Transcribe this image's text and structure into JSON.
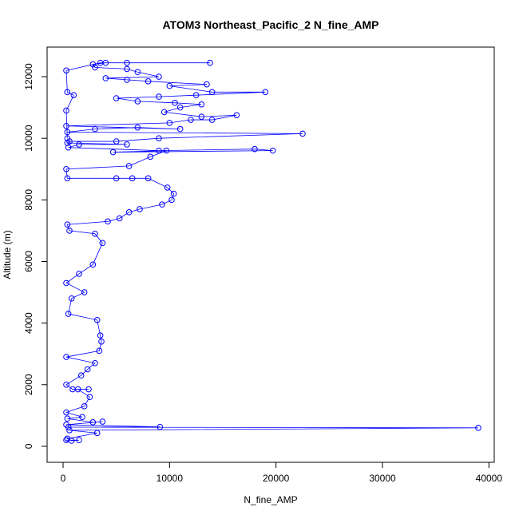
{
  "chart_data": {
    "type": "line",
    "title": "ATOM3 Northeast_Pacific_2 N_fine_AMP",
    "xlabel": "N_fine_AMP",
    "ylabel": "Altitude (m)",
    "color": "#0000ff",
    "markers": true,
    "x": [
      300,
      1500,
      800,
      400,
      3200,
      600,
      39000,
      500,
      9100,
      300,
      3700,
      2800,
      400,
      1800,
      300,
      2000,
      2500,
      1400,
      2400,
      900,
      300,
      1700,
      2300,
      3000,
      300,
      3400,
      3600,
      3500,
      3200,
      500,
      800,
      2000,
      300,
      1500,
      2800,
      3700,
      3000,
      600,
      400,
      4200,
      5300,
      6200,
      7200,
      9300,
      10200,
      10400,
      9800,
      8000,
      6500,
      5000,
      400,
      300,
      6200,
      8200,
      9700,
      4700,
      19700,
      18000,
      9000,
      500,
      1500,
      6000,
      400,
      600,
      5000,
      9000,
      22500,
      400,
      3000,
      7000,
      11000,
      300,
      10000,
      12000,
      14000,
      16300,
      13000,
      9500,
      11000,
      13000,
      10500,
      7000,
      5000,
      9000,
      12500,
      19000,
      14000,
      10000,
      13500,
      8000,
      6000,
      4000,
      9000,
      7000,
      6000,
      3000,
      2800,
      4000,
      6000,
      13800,
      3500,
      300,
      400,
      1000,
      300,
      400
    ],
    "values": [
      200,
      200,
      180,
      250,
      430,
      520,
      600,
      620,
      630,
      700,
      800,
      780,
      900,
      950,
      1100,
      1300,
      1600,
      1850,
      1850,
      1850,
      2000,
      2300,
      2500,
      2700,
      2900,
      3100,
      3400,
      3600,
      4100,
      4300,
      4800,
      5000,
      5300,
      5600,
      5900,
      6600,
      6900,
      7000,
      7200,
      7300,
      7400,
      7600,
      7700,
      7850,
      8000,
      8200,
      8400,
      8700,
      8700,
      8700,
      8700,
      9000,
      9100,
      9400,
      9600,
      9550,
      9600,
      9650,
      9600,
      9700,
      9800,
      9800,
      9850,
      9900,
      9900,
      10000,
      10150,
      10200,
      10300,
      10350,
      10300,
      10400,
      10500,
      10600,
      10600,
      10750,
      10700,
      10850,
      11000,
      11100,
      11150,
      11200,
      11300,
      11350,
      11400,
      11500,
      11500,
      11700,
      11750,
      11850,
      11900,
      11950,
      12000,
      12150,
      12250,
      12300,
      12400,
      12450,
      12450,
      12450,
      12450,
      12200,
      11500,
      11400,
      10900,
      10000
    ],
    "xlim": [
      -1500,
      40500
    ],
    "ylim": [
      -520,
      12960
    ],
    "xticks": [
      0,
      10000,
      20000,
      30000,
      40000
    ],
    "yticks": [
      0,
      2000,
      4000,
      6000,
      8000,
      10000,
      12000
    ]
  }
}
